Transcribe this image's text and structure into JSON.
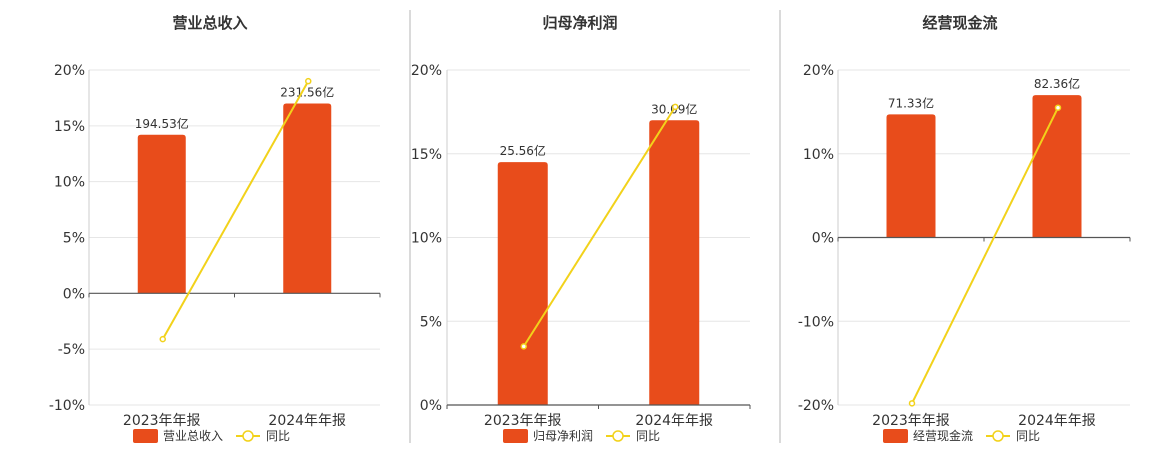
{
  "chart_data": [
    {
      "type": "bar",
      "title": "营业总收入",
      "categories": [
        "2023年年报",
        "2024年年报"
      ],
      "series": [
        {
          "name": "营业总收入",
          "type": "bar",
          "values": [
            14.2,
            17.0
          ],
          "labels": [
            "194.53亿",
            "231.56亿"
          ]
        },
        {
          "name": "同比",
          "type": "line",
          "values": [
            -4.1,
            19.0
          ]
        }
      ],
      "ylim": [
        -10,
        20
      ],
      "yticks": [
        "20%",
        "15%",
        "10%",
        "5%",
        "0%",
        "-5%",
        "-10%"
      ],
      "colors": {
        "bar": "#e84c1b",
        "line": "#f2d21b"
      },
      "legend": "bottom",
      "grid": true
    },
    {
      "type": "bar",
      "title": "归母净利润",
      "categories": [
        "2023年年报",
        "2024年年报"
      ],
      "series": [
        {
          "name": "归母净利润",
          "type": "bar",
          "values": [
            14.5,
            17.0
          ],
          "labels": [
            "25.56亿",
            "30.09亿"
          ]
        },
        {
          "name": "同比",
          "type": "line",
          "values": [
            3.5,
            17.8
          ]
        }
      ],
      "ylim": [
        0,
        20
      ],
      "yticks": [
        "20%",
        "15%",
        "10%",
        "5%",
        "0%"
      ],
      "colors": {
        "bar": "#e84c1b",
        "line": "#f2d21b"
      },
      "legend": "bottom",
      "grid": true
    },
    {
      "type": "bar",
      "title": "经营现金流",
      "categories": [
        "2023年年报",
        "2024年年报"
      ],
      "series": [
        {
          "name": "经营现金流",
          "type": "bar",
          "values": [
            14.7,
            17.0
          ],
          "labels": [
            "71.33亿",
            "82.36亿"
          ]
        },
        {
          "name": "同比",
          "type": "line",
          "values": [
            -19.8,
            15.5
          ]
        }
      ],
      "ylim": [
        -20,
        20
      ],
      "yticks": [
        "20%",
        "10%",
        "0%",
        "-10%",
        "-20%"
      ],
      "colors": {
        "bar": "#e84c1b",
        "line": "#f2d21b"
      },
      "legend": "bottom",
      "grid": true
    }
  ]
}
